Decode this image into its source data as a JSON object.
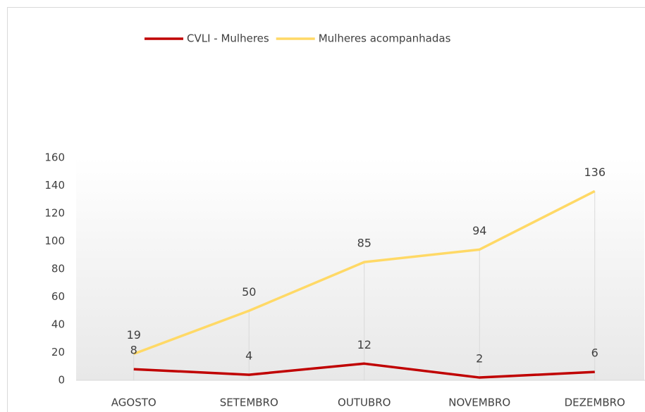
{
  "chart_data": {
    "type": "line",
    "categories": [
      "AGOSTO",
      "SETEMBRO",
      "OUTUBRO",
      "NOVEMBRO",
      "DEZEMBRO"
    ],
    "series": [
      {
        "name": "CVLI - Mulheres",
        "color": "#c00000",
        "values": [
          8,
          4,
          12,
          2,
          6
        ]
      },
      {
        "name": "Mulheres acompanhadas",
        "color": "#ffd966",
        "values": [
          19,
          50,
          85,
          94,
          136
        ]
      }
    ],
    "ylim": [
      0,
      160
    ],
    "yticks": [
      0,
      20,
      40,
      60,
      80,
      100,
      120,
      140,
      160
    ],
    "legend": "top",
    "grid": false
  }
}
